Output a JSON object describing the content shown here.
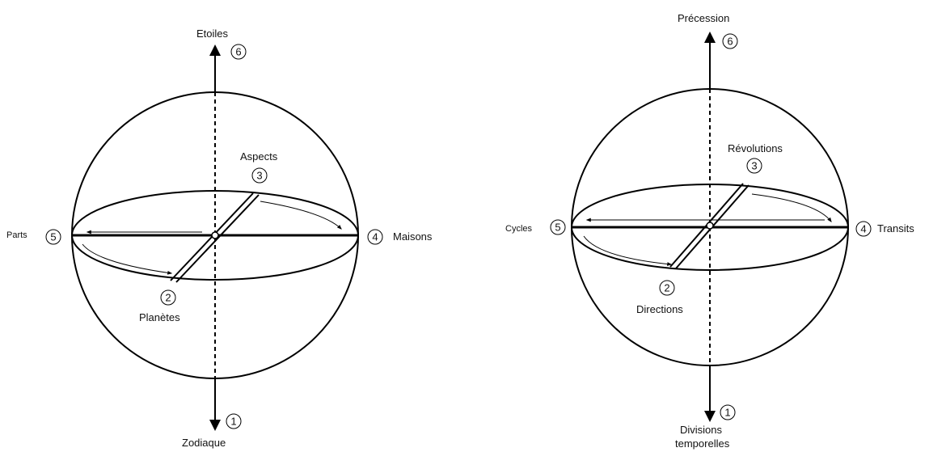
{
  "left_diagram": {
    "top": {
      "label": "Etoiles",
      "num": "6"
    },
    "bottom": {
      "label": "Zodiaque",
      "num": "1"
    },
    "left": {
      "label": "Parts",
      "num": "5"
    },
    "right": {
      "label": "Maisons",
      "num": "4"
    },
    "upper": {
      "label": "Aspects",
      "num": "3"
    },
    "lower": {
      "label": "Planètes",
      "num": "2"
    }
  },
  "right_diagram": {
    "top": {
      "label": "Précession",
      "num": "6"
    },
    "bottom": {
      "label_line1": "Divisions",
      "label_line2": "temporelles",
      "num": "1"
    },
    "left": {
      "label": "Cycles",
      "num": "5"
    },
    "right": {
      "label": "Transits",
      "num": "4"
    },
    "upper": {
      "label": "Révolutions",
      "num": "3"
    },
    "lower": {
      "label": "Directions",
      "num": "2"
    }
  }
}
